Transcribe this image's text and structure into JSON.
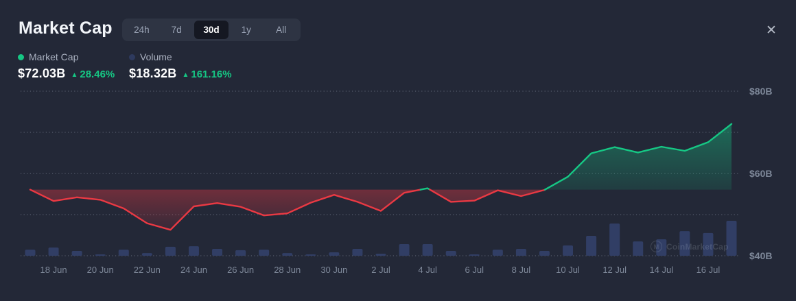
{
  "header": {
    "title": "Market Cap",
    "close_glyph": "✕"
  },
  "tabs": {
    "options": [
      "24h",
      "7d",
      "30d",
      "1y",
      "All"
    ],
    "selected": "30d"
  },
  "legend": {
    "market_cap": {
      "label": "Market Cap",
      "value": "$72.03B",
      "change": "28.46%",
      "direction": "up",
      "dot_color": "#16c784"
    },
    "volume": {
      "label": "Volume",
      "value": "$18.32B",
      "change": "161.16%",
      "direction": "up",
      "dot_color": "#2e3a5e"
    }
  },
  "watermark": {
    "text": "CoinMarketCap",
    "circle_glyph": "M"
  },
  "colors": {
    "background": "#232837",
    "up_green": "#16c784",
    "down_red": "#ea3943",
    "volume_bar": "#313e65",
    "grid": "rgba(154,164,184,0.42)",
    "axis_text": "#7e8899"
  },
  "chart_data": {
    "type": "line+bar",
    "x": [
      "17 Jun",
      "18 Jun",
      "19 Jun",
      "20 Jun",
      "21 Jun",
      "22 Jun",
      "23 Jun",
      "24 Jun",
      "25 Jun",
      "26 Jun",
      "27 Jun",
      "28 Jun",
      "29 Jun",
      "30 Jun",
      "1 Jul",
      "2 Jul",
      "3 Jul",
      "4 Jul",
      "5 Jul",
      "6 Jul",
      "7 Jul",
      "8 Jul",
      "9 Jul",
      "10 Jul",
      "11 Jul",
      "12 Jul",
      "13 Jul",
      "14 Jul",
      "15 Jul",
      "16 Jul",
      "17 Jul"
    ],
    "series": [
      {
        "name": "Market Cap",
        "unit": "$B",
        "style": "line-area-vs-baseline",
        "values": [
          56.07,
          53.3,
          54.2,
          53.6,
          51.5,
          47.9,
          46.3,
          52.0,
          52.8,
          51.9,
          49.8,
          50.3,
          52.9,
          54.8,
          53.1,
          50.9,
          55.3,
          56.4,
          53.1,
          53.4,
          55.9,
          54.5,
          56.0,
          59.2,
          64.9,
          66.4,
          65.1,
          66.5,
          65.5,
          67.6,
          72.03
        ]
      },
      {
        "name": "Volume",
        "unit": "$B",
        "style": "bar",
        "values": [
          3.2,
          4.3,
          2.5,
          0.7,
          3.2,
          1.4,
          4.7,
          5.0,
          3.6,
          2.9,
          3.2,
          1.4,
          0.7,
          1.8,
          3.6,
          1.1,
          6.1,
          6.1,
          2.5,
          0.7,
          3.2,
          3.6,
          2.5,
          5.4,
          10.4,
          16.9,
          7.5,
          8.6,
          12.9,
          11.9,
          18.32
        ]
      }
    ],
    "baseline_value": 56.07,
    "y_axis": {
      "range": [
        40,
        80
      ],
      "ticks": [
        {
          "value": 80,
          "label": "$80B"
        },
        {
          "value": 70,
          "label": ""
        },
        {
          "value": 60,
          "label": "$60B"
        },
        {
          "value": 50,
          "label": ""
        },
        {
          "value": 40,
          "label": "$40B"
        }
      ]
    },
    "x_tick_labels": [
      "18 Jun",
      "20 Jun",
      "22 Jun",
      "24 Jun",
      "26 Jun",
      "28 Jun",
      "30 Jun",
      "2 Jul",
      "4 Jul",
      "6 Jul",
      "8 Jul",
      "10 Jul",
      "12 Jul",
      "14 Jul",
      "16 Jul"
    ],
    "grid": "dotted-horizontal",
    "legend_position": "top-left"
  }
}
